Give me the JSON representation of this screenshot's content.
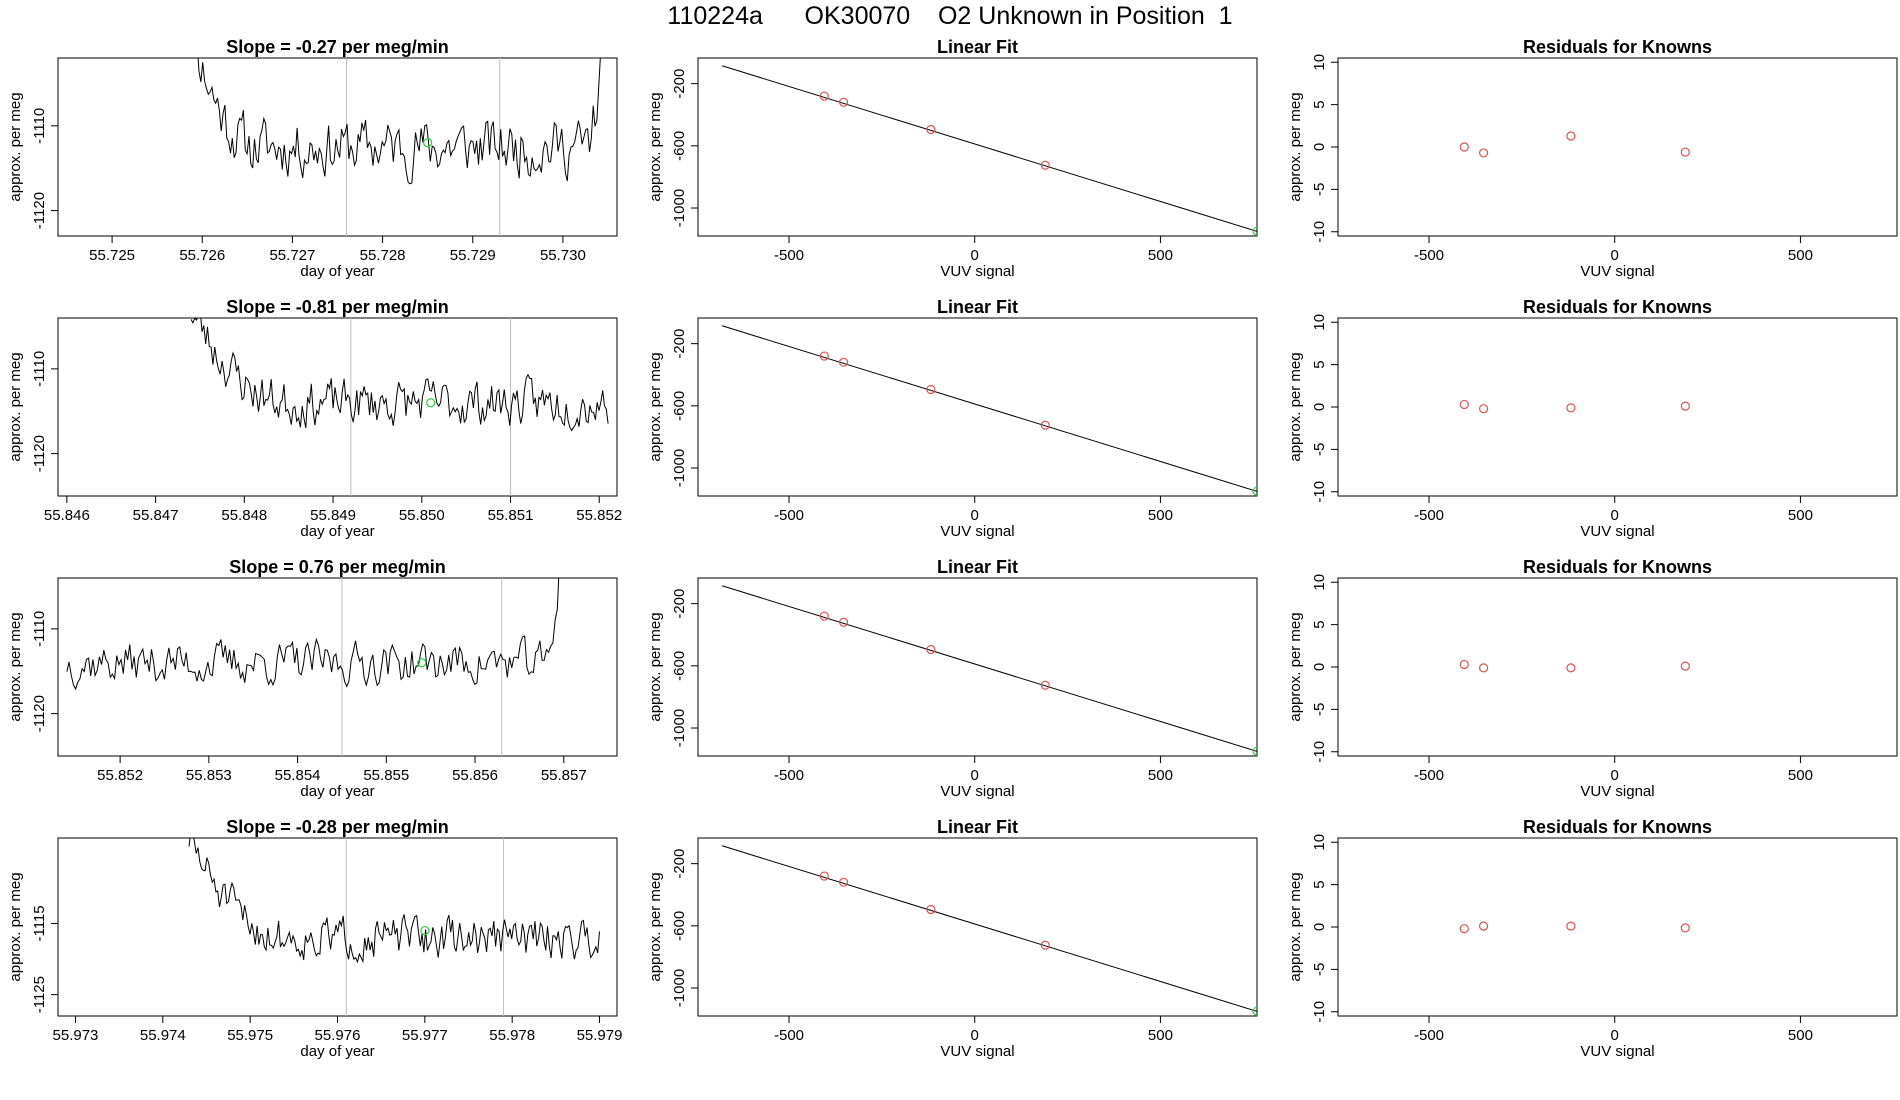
{
  "page_title": "110224a      OK30070    O2 Unknown in Position  1",
  "chart_data": [
    {
      "id": "ts1",
      "type": "line",
      "title": "Slope =  -0.27  per meg/min",
      "xlabel": "day of year",
      "ylabel": "approx. per meg",
      "xlim": [
        55.7244,
        55.7306
      ],
      "ylim": [
        -1123,
        -1102
      ],
      "xticks": [
        55.725,
        55.726,
        55.727,
        55.728,
        55.729,
        55.73
      ],
      "xticklabels": [
        "55.725",
        "55.726",
        "55.727",
        "55.728",
        "55.729",
        "55.730"
      ],
      "yticks": [
        -1110,
        -1120
      ],
      "yticklabels": [
        "-1110",
        "-1120"
      ],
      "vlines": [
        55.7276,
        55.7293
      ],
      "marker": {
        "x": 55.7285,
        "y": -1112,
        "color": "#2ecc40"
      },
      "series": [
        {
          "seed": 11,
          "x_start": 55.7258,
          "x_end": 55.7305,
          "base": -1112.5,
          "noise": 3.2,
          "start_high": -1095,
          "tail_high": -1095,
          "decay_frac": 0.18,
          "tail_frac": 0.05
        }
      ]
    },
    {
      "id": "ts2",
      "type": "line",
      "title": "Slope =  -0.81  per meg/min",
      "xlabel": "day of year",
      "ylabel": "approx. per meg",
      "xlim": [
        55.8459,
        55.8522
      ],
      "ylim": [
        -1125,
        -1104
      ],
      "xticks": [
        55.846,
        55.847,
        55.848,
        55.849,
        55.85,
        55.851,
        55.852
      ],
      "xticklabels": [
        "55.846",
        "55.847",
        "55.848",
        "55.849",
        "55.850",
        "55.851",
        "55.852"
      ],
      "yticks": [
        -1110,
        -1120
      ],
      "yticklabels": [
        "-1110",
        "-1120"
      ],
      "vlines": [
        55.8492,
        55.851
      ],
      "marker": {
        "x": 55.8501,
        "y": -1114,
        "color": "#2ecc40"
      },
      "series": [
        {
          "seed": 23,
          "x_start": 55.8474,
          "x_end": 55.8521,
          "base": -1114,
          "noise": 2.6,
          "start_high": -1103,
          "tail_high": null,
          "decay_frac": 0.25,
          "tail_frac": 0
        }
      ]
    },
    {
      "id": "ts3",
      "type": "line",
      "title": "Slope =  0.76  per meg/min",
      "xlabel": "day of year",
      "ylabel": "approx. per meg",
      "xlim": [
        55.8513,
        55.8576
      ],
      "ylim": [
        -1125,
        -1104
      ],
      "xticks": [
        55.852,
        55.853,
        55.854,
        55.855,
        55.856,
        55.857
      ],
      "xticklabels": [
        "55.852",
        "55.853",
        "55.854",
        "55.855",
        "55.856",
        "55.857"
      ],
      "yticks": [
        -1110,
        -1120
      ],
      "yticklabels": [
        "-1110",
        "-1120"
      ],
      "vlines": [
        55.8545,
        55.8563
      ],
      "marker": {
        "x": 55.8554,
        "y": -1114,
        "color": "#2ecc40"
      },
      "series": [
        {
          "seed": 37,
          "x_start": 55.8514,
          "x_end": 55.857,
          "base": -1114,
          "noise": 2.4,
          "start_high": null,
          "tail_high": -1096,
          "decay_frac": 0,
          "tail_frac": 0.035
        }
      ]
    },
    {
      "id": "ts4",
      "type": "line",
      "title": "Slope =  -0.28  per meg/min",
      "xlabel": "day of year",
      "ylabel": "approx. per meg",
      "xlim": [
        55.9728,
        55.9792
      ],
      "ylim": [
        -1128,
        -1103
      ],
      "xticks": [
        55.973,
        55.974,
        55.975,
        55.976,
        55.977,
        55.978,
        55.979
      ],
      "xticklabels": [
        "55.973",
        "55.974",
        "55.975",
        "55.976",
        "55.977",
        "55.978",
        "55.979"
      ],
      "yticks": [
        -1115,
        -1125
      ],
      "yticklabels": [
        "-1115",
        "-1125"
      ],
      "vlines": [
        55.9761,
        55.9779
      ],
      "marker": {
        "x": 55.977,
        "y": -1116,
        "color": "#2ecc40"
      },
      "series": [
        {
          "seed": 51,
          "x_start": 55.9743,
          "x_end": 55.979,
          "base": -1117,
          "noise": 2.8,
          "start_high": -1103,
          "tail_high": null,
          "decay_frac": 0.25,
          "tail_frac": 0
        }
      ]
    },
    {
      "id": "fit",
      "type": "scatter",
      "title": "Linear Fit",
      "xlabel": "VUV signal",
      "ylabel": "approx. per meg",
      "xlim": [
        -745,
        760
      ],
      "ylim": [
        -1180,
        -35
      ],
      "xticks": [
        -500,
        0,
        500
      ],
      "xticklabels": [
        "-500",
        "0",
        "500"
      ],
      "yticks": [
        -200,
        -600,
        -1000
      ],
      "yticklabels": [
        "-200",
        "-600",
        "-1000"
      ],
      "line": {
        "x": [
          -680,
          760
        ],
        "y": [
          -85,
          -1150
        ]
      },
      "points": [
        {
          "x": -405,
          "y": -280
        },
        {
          "x": -353,
          "y": -320
        },
        {
          "x": -118,
          "y": -495
        },
        {
          "x": 190,
          "y": -725
        }
      ],
      "marker": {
        "x": 760,
        "y": -1150,
        "color": "#2ecc40"
      },
      "point_color": "#d9534f"
    },
    {
      "id": "resid",
      "type": "scatter",
      "title": "Residuals for Knowns",
      "xlabel": "VUV signal",
      "ylabel": "approx. per meg",
      "xlim": [
        -745,
        760
      ],
      "ylim": [
        -10.5,
        10.5
      ],
      "xticks": [
        -500,
        0,
        500
      ],
      "xticklabels": [
        "-500",
        "0",
        "500"
      ],
      "yticks": [
        10,
        5,
        0,
        -5,
        -10
      ],
      "yticklabels": [
        "10",
        "5",
        "0",
        "-5",
        "-10"
      ],
      "point_color": "#d9534f",
      "rows": [
        [
          {
            "x": -405,
            "y": 0
          },
          {
            "x": -353,
            "y": -0.7
          },
          {
            "x": -118,
            "y": 1.3
          },
          {
            "x": 190,
            "y": -0.6
          }
        ],
        [
          {
            "x": -405,
            "y": 0.3
          },
          {
            "x": -353,
            "y": -0.2
          },
          {
            "x": -118,
            "y": -0.1
          },
          {
            "x": 190,
            "y": 0.1
          }
        ],
        [
          {
            "x": -405,
            "y": 0.3
          },
          {
            "x": -353,
            "y": -0.1
          },
          {
            "x": -118,
            "y": -0.1
          },
          {
            "x": 190,
            "y": 0.1
          }
        ],
        [
          {
            "x": -405,
            "y": -0.2
          },
          {
            "x": -353,
            "y": 0.1
          },
          {
            "x": -118,
            "y": 0.1
          },
          {
            "x": 190,
            "y": -0.1
          }
        ]
      ]
    }
  ]
}
